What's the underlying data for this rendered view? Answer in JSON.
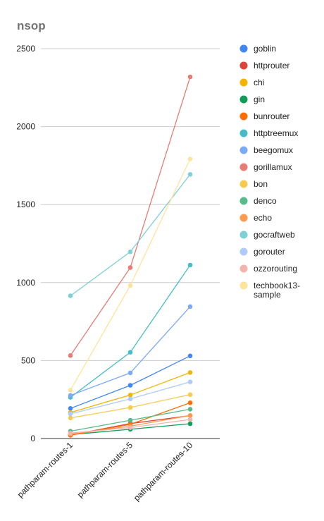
{
  "chart_data": {
    "type": "line",
    "title": "nsop",
    "xlabel": "",
    "ylabel": "",
    "categories": [
      "pathparam-routes-1",
      "pathparam-routes-5",
      "pathparam-routes-10"
    ],
    "ylim": [
      0,
      2500
    ],
    "yticks": [
      0,
      500,
      1000,
      1500,
      2000,
      2500
    ],
    "grid": true,
    "legend_position": "right",
    "series": [
      {
        "name": "goblin",
        "color": "#4285f4",
        "values": [
          193,
          341,
          530
        ]
      },
      {
        "name": "httprouter",
        "color": "#db4437",
        "values": [
          22,
          96,
          147
        ]
      },
      {
        "name": "chi",
        "color": "#f4b400",
        "values": [
          167,
          279,
          423
        ]
      },
      {
        "name": "gin",
        "color": "#0f9d58",
        "values": [
          25,
          59,
          95
        ]
      },
      {
        "name": "bunrouter",
        "color": "#ff6d01",
        "values": [
          21,
          91,
          229
        ]
      },
      {
        "name": "httptreemux",
        "color": "#46bdc6",
        "values": [
          264,
          553,
          1112
        ]
      },
      {
        "name": "beegomux",
        "color": "#7baaf7",
        "values": [
          276,
          421,
          846
        ]
      },
      {
        "name": "gorillamux",
        "color": "#e67c73",
        "values": [
          532,
          1096,
          2319
        ]
      },
      {
        "name": "bon",
        "color": "#f7cb4d",
        "values": [
          132,
          199,
          281
        ]
      },
      {
        "name": "denco",
        "color": "#57bb8a",
        "values": [
          47,
          117,
          188
        ]
      },
      {
        "name": "echo",
        "color": "#ff994d",
        "values": [
          28,
          79,
          148
        ]
      },
      {
        "name": "gocraftweb",
        "color": "#7ed0d6",
        "values": [
          915,
          1197,
          1694
        ]
      },
      {
        "name": "gorouter",
        "color": "#afcbfa",
        "values": [
          158,
          254,
          363
        ]
      },
      {
        "name": "ozzorouting",
        "color": "#f3b4ae",
        "values": [
          35,
          70,
          122
        ]
      },
      {
        "name": "techbook13-sample",
        "color": "#fde49b",
        "values": [
          310,
          981,
          1793
        ]
      }
    ]
  }
}
